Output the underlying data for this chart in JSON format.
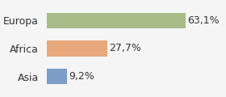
{
  "categories": [
    "Asia",
    "Africa",
    "Europa"
  ],
  "values": [
    9.2,
    27.7,
    63.1
  ],
  "labels": [
    "9,2%",
    "27,7%",
    "63,1%"
  ],
  "bar_colors": [
    "#7b9dc7",
    "#e8a87c",
    "#a8bc8a"
  ],
  "background_color": "#f5f5f5",
  "xlim": [
    0,
    80
  ],
  "bar_height": 0.55,
  "label_fontsize": 9,
  "tick_fontsize": 9
}
